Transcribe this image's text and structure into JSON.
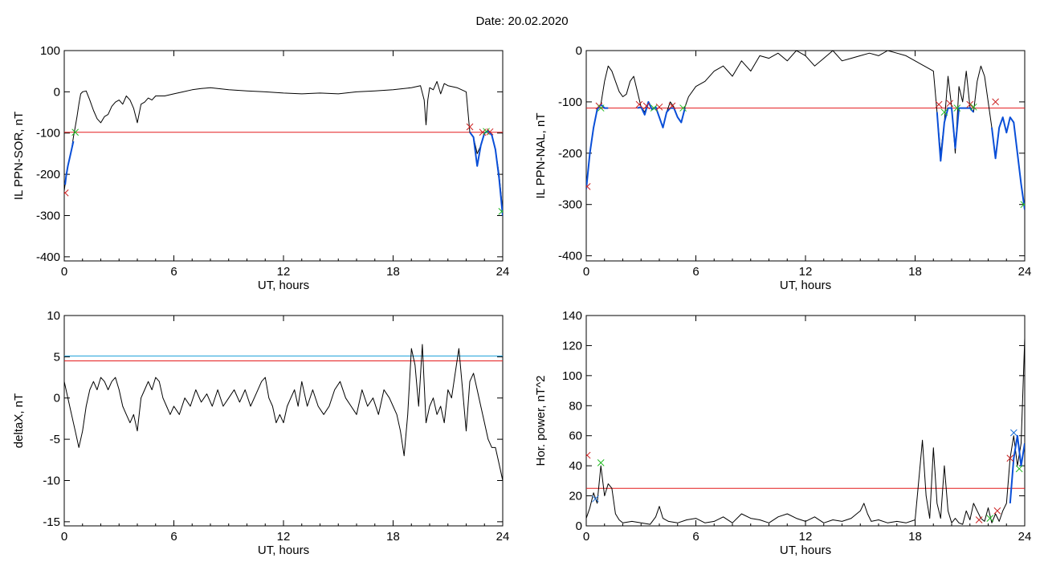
{
  "page": {
    "title": "Date:  20.02.2020"
  },
  "colors": {
    "threshold": "#e41a1c",
    "threshold2": "#1a9ed8",
    "blue": "#0a4fd8",
    "green": "#22bb22",
    "markerRed": "#cc2222",
    "markerBlue": "#1a6fd8"
  },
  "chart_data": [
    {
      "type": "line",
      "ylabel": "IL PPN-SOR, nT",
      "xlabel": "UT, hours",
      "xlim": [
        0,
        24
      ],
      "ylim": [
        -410,
        100
      ],
      "xticks": [
        0,
        6,
        12,
        18,
        24
      ],
      "yticks": [
        100,
        0,
        -100,
        -200,
        -300,
        -400
      ],
      "threshold": -98,
      "series": [
        {
          "x": [
            0,
            0.1,
            0.2,
            0.3,
            0.4,
            0.5,
            0.6,
            0.7,
            0.8,
            0.9,
            1.0,
            1.2,
            1.4,
            1.6,
            1.8,
            2.0,
            2.2,
            2.4,
            2.6,
            2.8,
            3.0,
            3.2,
            3.4,
            3.6,
            3.8,
            4.0,
            4.2,
            4.4,
            4.6,
            4.8,
            5.0,
            5.5,
            6.0,
            6.5,
            7.0,
            7.5,
            8.0,
            9.0,
            10.0,
            11.0,
            12.0,
            13.0,
            14.0,
            15.0,
            16.0,
            17.0,
            18.0,
            19.0,
            19.5,
            19.7,
            19.8,
            19.9,
            20.0,
            20.2,
            20.4,
            20.6,
            20.8,
            21.0,
            21.5,
            22.0,
            22.2,
            22.4,
            22.6,
            22.8,
            23.0,
            23.2,
            23.4,
            23.6,
            23.8,
            24.0
          ],
          "y": [
            -240,
            -205,
            -180,
            -160,
            -140,
            -110,
            -85,
            -60,
            -30,
            -5,
            0,
            2,
            -20,
            -45,
            -65,
            -75,
            -60,
            -55,
            -35,
            -25,
            -20,
            -30,
            -10,
            -20,
            -40,
            -75,
            -30,
            -25,
            -15,
            -20,
            -10,
            -10,
            -5,
            0,
            5,
            8,
            10,
            5,
            2,
            0,
            -3,
            -5,
            -3,
            -5,
            0,
            2,
            5,
            10,
            15,
            -20,
            -80,
            -20,
            10,
            5,
            25,
            -5,
            20,
            15,
            10,
            0,
            -98,
            -110,
            -150,
            -130,
            -100,
            -95,
            -105,
            -140,
            -200,
            -290
          ]
        },
        {
          "x": [
            0.05,
            0.1,
            0.2,
            0.3,
            0.4,
            0.5
          ],
          "y": [
            -225,
            -205,
            -180,
            -160,
            -140,
            -120
          ],
          "color": "blue"
        },
        {
          "x": [
            22.2,
            22.4,
            22.6,
            22.8,
            23.0,
            23.2,
            23.4,
            23.6,
            23.8,
            24.0
          ],
          "y": [
            -98,
            -110,
            -180,
            -130,
            -100,
            -95,
            -105,
            -140,
            -210,
            -300
          ],
          "color": "blue"
        }
      ],
      "markers": [
        {
          "x": 0.05,
          "y": -245,
          "color": "markerRed"
        },
        {
          "x": 0.6,
          "y": -98,
          "color": "green"
        },
        {
          "x": 22.2,
          "y": -85,
          "color": "markerRed"
        },
        {
          "x": 22.9,
          "y": -98,
          "color": "markerRed"
        },
        {
          "x": 23.1,
          "y": -96,
          "color": "green"
        },
        {
          "x": 23.3,
          "y": -97,
          "color": "markerRed"
        },
        {
          "x": 23.95,
          "y": -290,
          "color": "green"
        }
      ]
    },
    {
      "type": "line",
      "ylabel": "IL PPN-NAL, nT",
      "xlabel": "UT, hours",
      "xlim": [
        0,
        24
      ],
      "ylim": [
        -410,
        0
      ],
      "xticks": [
        0,
        6,
        12,
        18,
        24
      ],
      "yticks": [
        0,
        -100,
        -200,
        -300,
        -400
      ],
      "threshold": -112,
      "series": [
        {
          "x": [
            0,
            0.2,
            0.4,
            0.6,
            0.8,
            1.0,
            1.2,
            1.4,
            1.6,
            1.8,
            2.0,
            2.2,
            2.4,
            2.6,
            2.8,
            3.0,
            3.2,
            3.4,
            3.6,
            3.8,
            4.0,
            4.2,
            4.4,
            4.6,
            4.8,
            5.0,
            5.2,
            5.4,
            5.6,
            6.0,
            6.5,
            7.0,
            7.5,
            8.0,
            8.5,
            9.0,
            9.5,
            10.0,
            10.5,
            11.0,
            11.5,
            12.0,
            12.5,
            13.0,
            13.5,
            14.0,
            14.5,
            15.0,
            15.5,
            16.0,
            16.5,
            17.0,
            17.5,
            18.0,
            18.5,
            19.0,
            19.2,
            19.4,
            19.6,
            19.8,
            20.0,
            20.2,
            20.4,
            20.6,
            20.8,
            21.0,
            21.2,
            21.4,
            21.6,
            21.8,
            22.0,
            22.2,
            22.4,
            22.6,
            22.8,
            23.0,
            23.2,
            23.4,
            23.6,
            23.8,
            24.0
          ],
          "y": [
            -270,
            -200,
            -150,
            -115,
            -105,
            -60,
            -30,
            -40,
            -60,
            -80,
            -90,
            -85,
            -60,
            -50,
            -80,
            -110,
            -120,
            -100,
            -115,
            -110,
            -130,
            -150,
            -120,
            -100,
            -110,
            -130,
            -140,
            -110,
            -90,
            -70,
            -60,
            -40,
            -30,
            -50,
            -20,
            -40,
            -10,
            -15,
            -5,
            -20,
            0,
            -10,
            -30,
            -15,
            0,
            -20,
            -15,
            -10,
            -5,
            -10,
            0,
            -5,
            -10,
            -20,
            -30,
            -40,
            -120,
            -200,
            -140,
            -50,
            -110,
            -200,
            -70,
            -100,
            -40,
            -110,
            -120,
            -60,
            -30,
            -50,
            -100,
            -150,
            -210,
            -150,
            -130,
            -160,
            -130,
            -140,
            -200,
            -260,
            -310
          ]
        },
        {
          "x": [
            0,
            0.2,
            0.4,
            0.6,
            0.8,
            1.0,
            1.2
          ],
          "y": [
            -270,
            -200,
            -150,
            -115,
            -105,
            -112,
            -112
          ],
          "color": "blue"
        },
        {
          "x": [
            2.8,
            3.0,
            3.2,
            3.4,
            3.6,
            3.8,
            4.0,
            4.2,
            4.4,
            4.6,
            4.8,
            5.0,
            5.2,
            5.4
          ],
          "y": [
            -112,
            -110,
            -125,
            -100,
            -115,
            -110,
            -130,
            -150,
            -120,
            -112,
            -112,
            -130,
            -140,
            -112
          ],
          "color": "blue"
        },
        {
          "x": [
            19.2,
            19.4,
            19.6,
            19.8,
            20.0,
            20.2,
            20.4,
            20.6,
            20.8,
            21.0,
            21.2
          ],
          "y": [
            -120,
            -215,
            -140,
            -112,
            -112,
            -190,
            -112,
            -112,
            -112,
            -112,
            -120
          ],
          "color": "blue"
        },
        {
          "x": [
            22.2,
            22.4,
            22.6,
            22.8,
            23.0,
            23.2,
            23.4,
            23.6,
            23.8,
            24.0
          ],
          "y": [
            -150,
            -210,
            -150,
            -130,
            -160,
            -130,
            -140,
            -200,
            -260,
            -310
          ],
          "color": "blue"
        }
      ],
      "markers": [
        {
          "x": 0.05,
          "y": -265,
          "color": "markerRed"
        },
        {
          "x": 0.7,
          "y": -108,
          "color": "markerRed"
        },
        {
          "x": 0.8,
          "y": -112,
          "color": "green"
        },
        {
          "x": 2.9,
          "y": -105,
          "color": "markerRed"
        },
        {
          "x": 3.3,
          "y": -108,
          "color": "markerRed"
        },
        {
          "x": 3.7,
          "y": -112,
          "color": "green"
        },
        {
          "x": 4.0,
          "y": -110,
          "color": "markerRed"
        },
        {
          "x": 4.7,
          "y": -108,
          "color": "markerRed"
        },
        {
          "x": 5.3,
          "y": -112,
          "color": "green"
        },
        {
          "x": 19.3,
          "y": -105,
          "color": "markerRed"
        },
        {
          "x": 19.6,
          "y": -120,
          "color": "green"
        },
        {
          "x": 19.9,
          "y": -103,
          "color": "markerRed"
        },
        {
          "x": 20.3,
          "y": -112,
          "color": "green"
        },
        {
          "x": 21.0,
          "y": -105,
          "color": "markerRed"
        },
        {
          "x": 21.2,
          "y": -110,
          "color": "green"
        },
        {
          "x": 22.4,
          "y": -100,
          "color": "markerRed"
        },
        {
          "x": 23.95,
          "y": -300,
          "color": "green"
        }
      ]
    },
    {
      "type": "line",
      "ylabel": "deltaX, nT",
      "xlabel": "UT, hours",
      "xlim": [
        0,
        24
      ],
      "ylim": [
        -15.5,
        10
      ],
      "xticks": [
        0,
        6,
        12,
        18,
        24
      ],
      "yticks": [
        10,
        5,
        0,
        -5,
        -10,
        -15
      ],
      "threshold": 4.5,
      "threshold2": 5.1,
      "series": [
        {
          "x": [
            0,
            0.2,
            0.4,
            0.6,
            0.8,
            1.0,
            1.2,
            1.4,
            1.6,
            1.8,
            2.0,
            2.2,
            2.4,
            2.6,
            2.8,
            3.0,
            3.2,
            3.4,
            3.6,
            3.8,
            4.0,
            4.2,
            4.4,
            4.6,
            4.8,
            5.0,
            5.2,
            5.4,
            5.6,
            5.8,
            6.0,
            6.3,
            6.6,
            6.9,
            7.2,
            7.5,
            7.8,
            8.1,
            8.4,
            8.7,
            9.0,
            9.3,
            9.6,
            9.9,
            10.2,
            10.5,
            10.8,
            11.0,
            11.2,
            11.4,
            11.6,
            11.8,
            12.0,
            12.2,
            12.4,
            12.6,
            12.8,
            13.0,
            13.3,
            13.6,
            13.9,
            14.2,
            14.5,
            14.8,
            15.1,
            15.4,
            15.7,
            16.0,
            16.3,
            16.6,
            16.9,
            17.2,
            17.5,
            17.8,
            18.0,
            18.2,
            18.4,
            18.6,
            18.8,
            19.0,
            19.2,
            19.4,
            19.6,
            19.8,
            20.0,
            20.2,
            20.4,
            20.6,
            20.8,
            21.0,
            21.2,
            21.4,
            21.6,
            21.8,
            22.0,
            22.2,
            22.4,
            22.6,
            22.8,
            23.0,
            23.2,
            23.4,
            23.6,
            23.8,
            24.0
          ],
          "y": [
            2,
            0,
            -2,
            -4,
            -6,
            -4,
            -1,
            1,
            2,
            1,
            2.5,
            2,
            1,
            2,
            2.5,
            1,
            -1,
            -2,
            -3,
            -2,
            -4,
            0,
            1,
            2,
            1,
            2.5,
            2,
            0,
            -1,
            -2,
            -1,
            -2,
            0,
            -1,
            1,
            -0.5,
            0.5,
            -1,
            1,
            -1,
            0,
            1,
            -0.5,
            1,
            -1,
            0.5,
            2,
            2.5,
            0,
            -1,
            -3,
            -2,
            -3,
            -1,
            0,
            1,
            -1,
            2,
            -1,
            1,
            -1,
            -2,
            -1,
            1,
            2,
            0,
            -1,
            -2,
            1,
            -1,
            0,
            -2,
            1,
            0,
            -1,
            -2,
            -4,
            -7,
            -2,
            6,
            4,
            -1,
            6.5,
            -3,
            -1,
            0,
            -2,
            -1,
            -3,
            1,
            0,
            3,
            6,
            1,
            -4,
            2,
            3,
            1,
            -1,
            -3,
            -5,
            -6,
            -6,
            -8,
            -10
          ]
        }
      ],
      "markers": []
    },
    {
      "type": "line",
      "ylabel": "Hor. power, nT^2",
      "xlabel": "UT, hours",
      "xlim": [
        0,
        24
      ],
      "ylim": [
        0,
        140
      ],
      "xticks": [
        0,
        6,
        12,
        18,
        24
      ],
      "yticks": [
        140,
        120,
        100,
        80,
        60,
        40,
        20,
        0
      ],
      "threshold": 25,
      "series": [
        {
          "x": [
            0,
            0.2,
            0.4,
            0.6,
            0.8,
            1.0,
            1.2,
            1.4,
            1.6,
            1.8,
            2.0,
            2.5,
            3.0,
            3.5,
            3.8,
            4.0,
            4.2,
            4.5,
            5.0,
            5.5,
            6.0,
            6.5,
            7.0,
            7.5,
            8.0,
            8.5,
            9.0,
            9.5,
            10.0,
            10.5,
            11.0,
            11.5,
            12.0,
            12.5,
            13.0,
            13.5,
            14.0,
            14.5,
            15.0,
            15.2,
            15.4,
            15.6,
            16.0,
            16.5,
            17.0,
            17.5,
            18.0,
            18.2,
            18.4,
            18.6,
            18.8,
            19.0,
            19.2,
            19.4,
            19.6,
            19.8,
            20.0,
            20.2,
            20.4,
            20.6,
            20.8,
            21.0,
            21.2,
            21.4,
            21.6,
            21.8,
            22.0,
            22.2,
            22.4,
            22.6,
            22.8,
            23.0,
            23.2,
            23.4,
            23.6,
            23.8,
            24.0
          ],
          "y": [
            5,
            12,
            22,
            15,
            40,
            20,
            28,
            25,
            8,
            4,
            2,
            3,
            2,
            1,
            6,
            13,
            5,
            3,
            2,
            4,
            5,
            2,
            3,
            6,
            2,
            8,
            5,
            4,
            2,
            6,
            8,
            5,
            3,
            6,
            2,
            4,
            3,
            5,
            10,
            15,
            8,
            3,
            4,
            2,
            3,
            2,
            4,
            30,
            57,
            20,
            5,
            52,
            15,
            5,
            40,
            10,
            2,
            5,
            2,
            1,
            10,
            4,
            15,
            10,
            5,
            3,
            12,
            2,
            8,
            3,
            10,
            15,
            45,
            60,
            40,
            55,
            125
          ]
        },
        {
          "x": [
            23.2,
            23.4,
            23.6,
            23.8,
            24.0
          ],
          "y": [
            15,
            45,
            60,
            40,
            55
          ],
          "color": "blue"
        }
      ],
      "markers": [
        {
          "x": 0.05,
          "y": 47,
          "color": "markerRed"
        },
        {
          "x": 0.5,
          "y": 18,
          "color": "markerBlue"
        },
        {
          "x": 0.8,
          "y": 42,
          "color": "green"
        },
        {
          "x": 21.5,
          "y": 4,
          "color": "markerRed"
        },
        {
          "x": 22.1,
          "y": 5,
          "color": "green"
        },
        {
          "x": 22.5,
          "y": 10,
          "color": "markerRed"
        },
        {
          "x": 23.2,
          "y": 45,
          "color": "markerRed"
        },
        {
          "x": 23.4,
          "y": 62,
          "color": "markerBlue"
        },
        {
          "x": 23.7,
          "y": 38,
          "color": "green"
        }
      ]
    }
  ]
}
